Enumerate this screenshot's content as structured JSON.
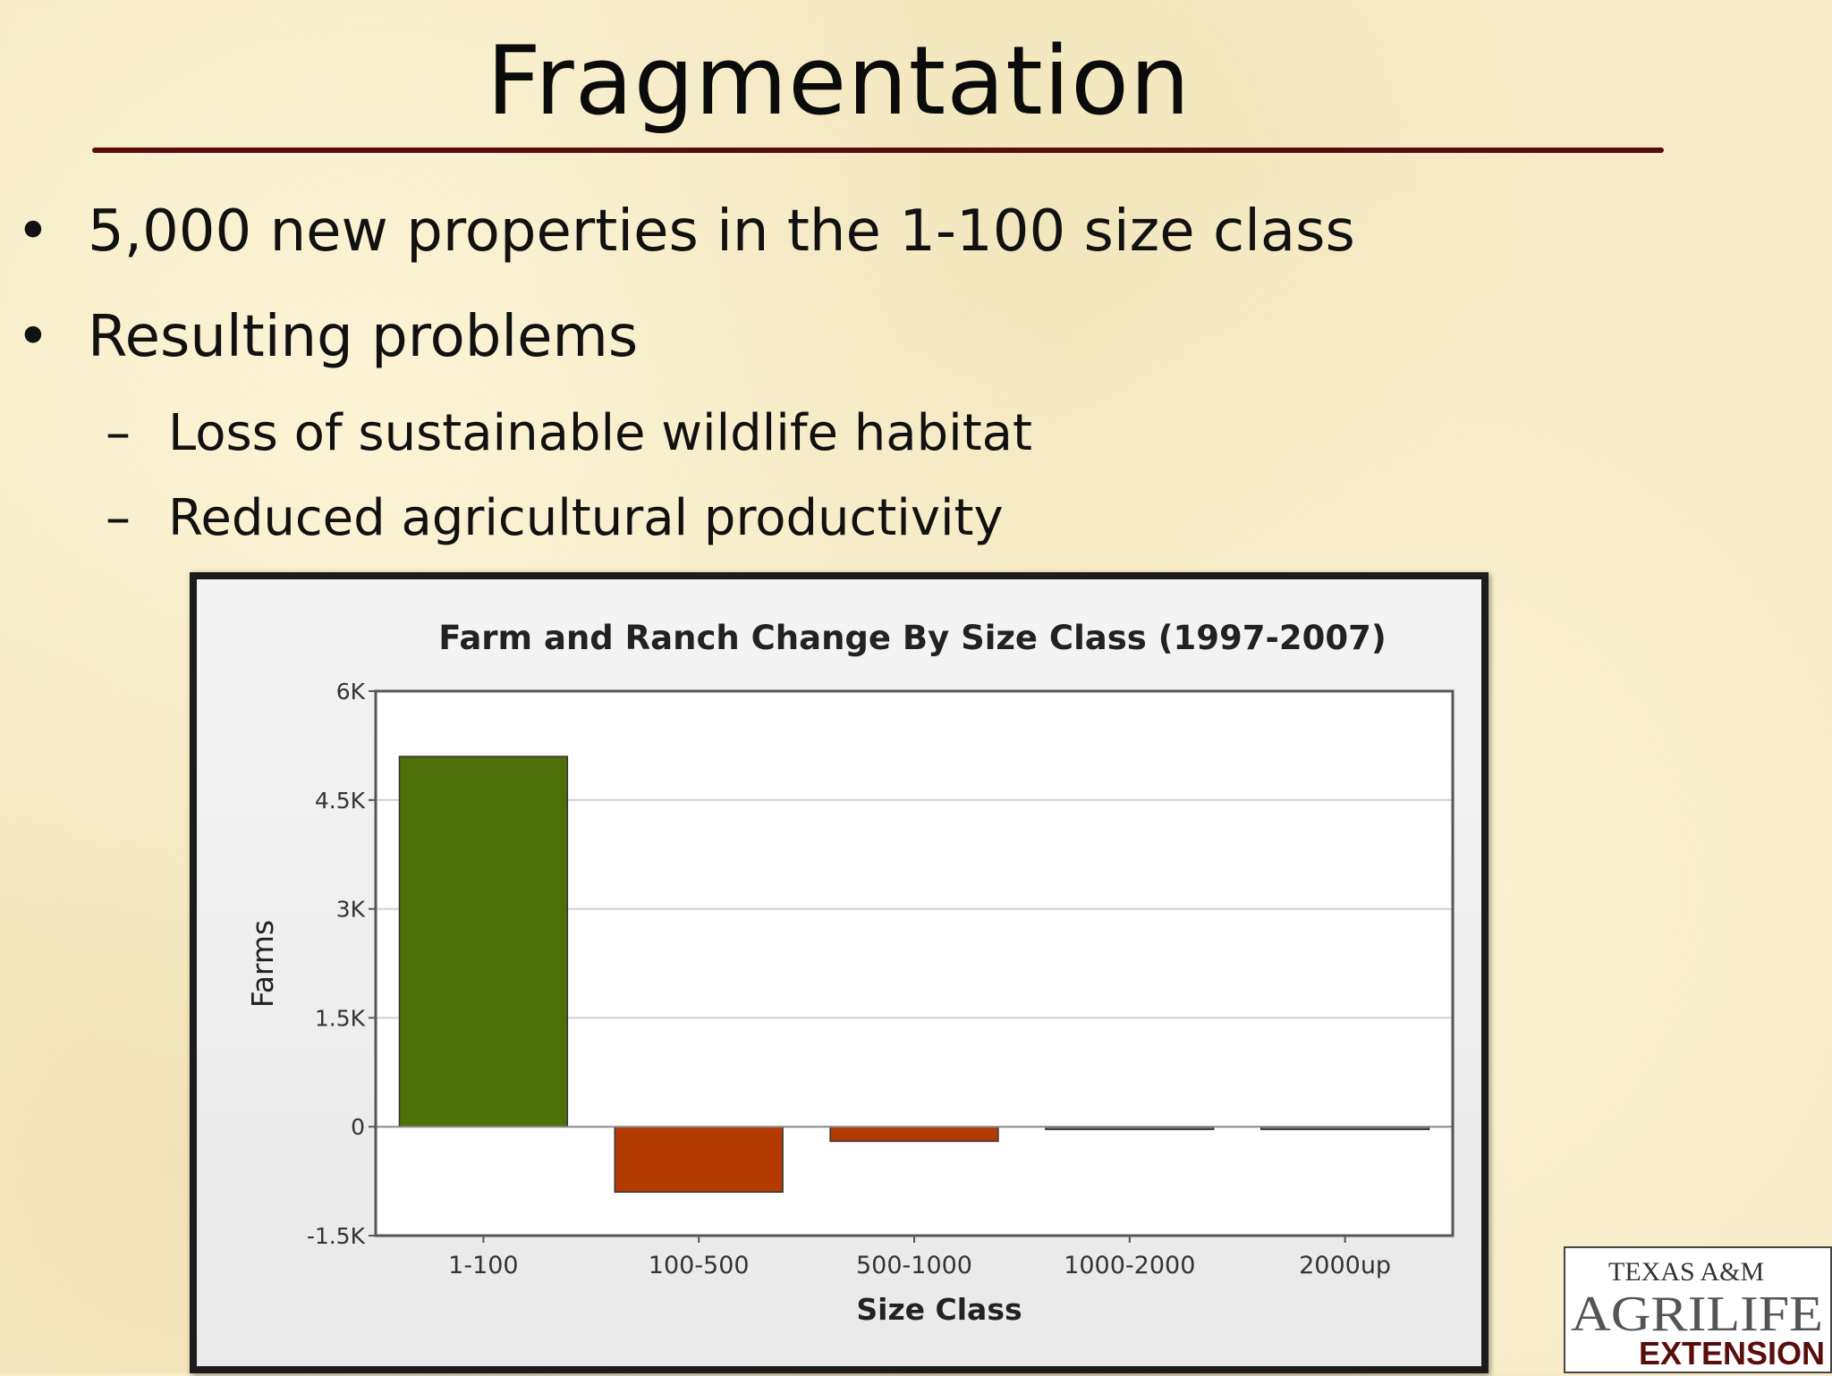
{
  "slide": {
    "title": "Fragmentation",
    "bullets": [
      "5,000 new properties in the 1-100 size class",
      "Resulting problems"
    ],
    "sub_bullets": [
      "Loss of sustainable wildlife habitat",
      "Reduced agricultural productivity"
    ],
    "bullet_glyph": "•",
    "sub_bullet_glyph": "–"
  },
  "logo": {
    "line1": "TEXAS A&M",
    "line2": "AGRILIFE",
    "line3": "EXTENSION"
  },
  "chart_data": {
    "type": "bar",
    "title": "Farm and Ranch Change By Size Class (1997-2007)",
    "xlabel": "Size Class",
    "ylabel": "Farms",
    "categories": [
      "1-100",
      "100-500",
      "500-1000",
      "1000-2000",
      "2000up"
    ],
    "values": [
      5100,
      -900,
      -200,
      -30,
      -10
    ],
    "ylim": [
      -1500,
      6000
    ],
    "yticks": [
      {
        "value": -1500,
        "label": "-1.5K"
      },
      {
        "value": 0,
        "label": "0"
      },
      {
        "value": 1500,
        "label": "1.5K"
      },
      {
        "value": 3000,
        "label": "3K"
      },
      {
        "value": 4500,
        "label": "4.5K"
      },
      {
        "value": 6000,
        "label": "6K"
      }
    ],
    "grid": true,
    "colors": {
      "positive": "#4e7009",
      "negative": "#b33b00",
      "grid": "#cfcfcf",
      "axis": "#555555"
    }
  }
}
